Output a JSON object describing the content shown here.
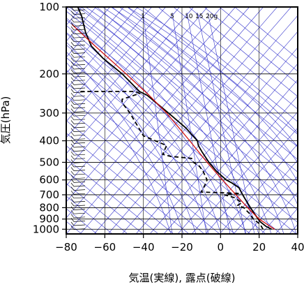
{
  "chart_data": {
    "type": "line",
    "xlabel": "気温(実線), 露点(破線)",
    "ylabel": "気圧(hPa)",
    "xlim": [
      -80,
      40
    ],
    "ylim": [
      1050,
      100
    ],
    "y_scale": "log",
    "x_ticks": [
      -80,
      -60,
      -40,
      -20,
      0,
      20,
      40
    ],
    "y_ticks": [
      100,
      200,
      300,
      400,
      500,
      600,
      700,
      800,
      900,
      1000
    ],
    "mixing_ratio_labels": [
      "1",
      "5",
      "10",
      "15",
      "20g"
    ],
    "mixing_ratio_values": [
      1,
      5,
      10,
      15,
      20
    ],
    "grid": true,
    "series": [
      {
        "role": "temperature",
        "style": "solid",
        "color": "#000000",
        "points": [
          {
            "p": 1000,
            "t": 26.5
          },
          {
            "p": 970,
            "t": 23.5
          },
          {
            "p": 925,
            "t": 20.5
          },
          {
            "p": 900,
            "t": 19.5
          },
          {
            "p": 850,
            "t": 17.5
          },
          {
            "p": 800,
            "t": 15.5
          },
          {
            "p": 750,
            "t": 13.5
          },
          {
            "p": 700,
            "t": 11.5
          },
          {
            "p": 650,
            "t": 9.5
          },
          {
            "p": 620,
            "t": 6
          },
          {
            "p": 600,
            "t": 3
          },
          {
            "p": 550,
            "t": -2
          },
          {
            "p": 500,
            "t": -6
          },
          {
            "p": 450,
            "t": -9.5
          },
          {
            "p": 420,
            "t": -11.5
          },
          {
            "p": 400,
            "t": -12
          },
          {
            "p": 350,
            "t": -18
          },
          {
            "p": 300,
            "t": -27
          },
          {
            "p": 250,
            "t": -38
          },
          {
            "p": 240,
            "t": -42
          },
          {
            "p": 200,
            "t": -51
          },
          {
            "p": 170,
            "t": -61
          },
          {
            "p": 150,
            "t": -67
          },
          {
            "p": 130,
            "t": -70
          },
          {
            "p": 110,
            "t": -72
          },
          {
            "p": 100,
            "t": -74
          }
        ]
      },
      {
        "role": "dewpoint",
        "style": "dashed",
        "color": "#000000",
        "points": [
          {
            "p": 1000,
            "t": 22
          },
          {
            "p": 950,
            "t": 20.5
          },
          {
            "p": 900,
            "t": 17
          },
          {
            "p": 850,
            "t": 15
          },
          {
            "p": 800,
            "t": 12
          },
          {
            "p": 780,
            "t": 9
          },
          {
            "p": 760,
            "t": 11
          },
          {
            "p": 720,
            "t": 7
          },
          {
            "p": 700,
            "t": 2
          },
          {
            "p": 690,
            "t": 10
          },
          {
            "p": 680,
            "t": -10
          },
          {
            "p": 630,
            "t": -8
          },
          {
            "p": 600,
            "t": -7
          },
          {
            "p": 550,
            "t": -9
          },
          {
            "p": 520,
            "t": -11
          },
          {
            "p": 500,
            "t": -14
          },
          {
            "p": 480,
            "t": -15
          },
          {
            "p": 470,
            "t": -26
          },
          {
            "p": 460,
            "t": -30
          },
          {
            "p": 420,
            "t": -28
          },
          {
            "p": 380,
            "t": -40
          },
          {
            "p": 300,
            "t": -47
          },
          {
            "p": 270,
            "t": -51
          },
          {
            "p": 260,
            "t": -51
          },
          {
            "p": 245,
            "t": -42
          },
          {
            "p": 240,
            "t": -44
          },
          {
            "p": 240,
            "t": -73
          }
        ]
      },
      {
        "role": "parcel",
        "style": "solid",
        "color": "#d01010",
        "points": [
          {
            "p": 1000,
            "t": 28
          },
          {
            "p": 900,
            "t": 20
          },
          {
            "p": 800,
            "t": 14
          },
          {
            "p": 700,
            "t": 8
          },
          {
            "p": 600,
            "t": 1
          },
          {
            "p": 500,
            "t": -7
          },
          {
            "p": 400,
            "t": -16
          },
          {
            "p": 300,
            "t": -28
          },
          {
            "p": 250,
            "t": -37
          },
          {
            "p": 200,
            "t": -49
          },
          {
            "p": 150,
            "t": -65
          },
          {
            "p": 120,
            "t": -77
          }
        ]
      }
    ],
    "colors": {
      "isotherm": "#3333cc",
      "adiabat": "#3333cc",
      "mixing_ratio": "#3333cc",
      "grid": "#000000",
      "barb": "#000000"
    }
  }
}
